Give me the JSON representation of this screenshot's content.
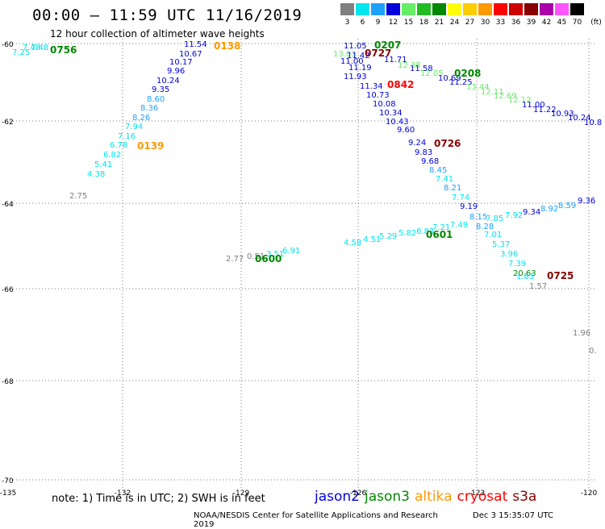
{
  "title": "00:00 – 11:59 UTC 11/16/2019",
  "subtitle": "12 hour collection of altimeter wave heights",
  "legend": {
    "unit": "(ft)",
    "items": [
      {
        "label": "3",
        "color": "#808080"
      },
      {
        "label": "6",
        "color": "#00e5ee"
      },
      {
        "label": "9",
        "color": "#1ea0ff"
      },
      {
        "label": "12",
        "color": "#0000dd"
      },
      {
        "label": "15",
        "color": "#66ee66"
      },
      {
        "label": "18",
        "color": "#22bb22"
      },
      {
        "label": "21",
        "color": "#008800"
      },
      {
        "label": "24",
        "color": "#ffff00"
      },
      {
        "label": "27",
        "color": "#ffcc00"
      },
      {
        "label": "30",
        "color": "#ff9900"
      },
      {
        "label": "33",
        "color": "#ff0000"
      },
      {
        "label": "36",
        "color": "#cc0000"
      },
      {
        "label": "39",
        "color": "#880000"
      },
      {
        "label": "42",
        "color": "#aa00aa"
      },
      {
        "label": "45",
        "color": "#ff55ff"
      },
      {
        "label": "70",
        "color": "#000000"
      }
    ]
  },
  "map": {
    "x_ticks": [
      "-135",
      "-132",
      "-129",
      "-126",
      "-123",
      "-120"
    ],
    "y_ticks": [
      "-60",
      "-62",
      "-64",
      "-66",
      "-68",
      "-70"
    ],
    "track_labels": [
      {
        "text": "0756",
        "color": "#008800"
      },
      {
        "text": "0138",
        "color": "#ff9900"
      },
      {
        "text": "0139",
        "color": "#ff9900"
      },
      {
        "text": "0207",
        "color": "#008800"
      },
      {
        "text": "0727",
        "color": "#880000"
      },
      {
        "text": "0842",
        "color": "#ff0000"
      },
      {
        "text": "0208",
        "color": "#008800"
      },
      {
        "text": "0726",
        "color": "#880000"
      },
      {
        "text": "0601",
        "color": "#008800"
      },
      {
        "text": "0600",
        "color": "#008800"
      },
      {
        "text": "0725",
        "color": "#880000"
      }
    ],
    "wave_labels": [
      {
        "text": "7.25",
        "color": "#00e5ee"
      },
      {
        "text": "7.48",
        "color": "#00e5ee"
      },
      {
        "text": "7.48",
        "color": "#00e5ee"
      },
      {
        "text": "11.54",
        "color": "#0000dd"
      },
      {
        "text": "10.67",
        "color": "#0000dd"
      },
      {
        "text": "10.17",
        "color": "#0000dd"
      },
      {
        "text": "9.96",
        "color": "#0000dd"
      },
      {
        "text": "10.24",
        "color": "#0000dd"
      },
      {
        "text": "9.35",
        "color": "#0000dd"
      },
      {
        "text": "8.60",
        "color": "#1ea0ff"
      },
      {
        "text": "8.36",
        "color": "#1ea0ff"
      },
      {
        "text": "8.26",
        "color": "#1ea0ff"
      },
      {
        "text": "7.94",
        "color": "#00e5ee"
      },
      {
        "text": "7.16",
        "color": "#00e5ee"
      },
      {
        "text": "6.78",
        "color": "#00e5ee"
      },
      {
        "text": "6.82",
        "color": "#00e5ee"
      },
      {
        "text": "5.41",
        "color": "#00e5ee"
      },
      {
        "text": "4.38",
        "color": "#00e5ee"
      },
      {
        "text": "2.75",
        "color": "#808080"
      },
      {
        "text": "11.05",
        "color": "#0000dd"
      },
      {
        "text": "13.03",
        "color": "#66ee66"
      },
      {
        "text": "11.42",
        "color": "#0000dd"
      },
      {
        "text": "11.00",
        "color": "#0000dd"
      },
      {
        "text": "11.19",
        "color": "#0000dd"
      },
      {
        "text": "11.93",
        "color": "#0000dd"
      },
      {
        "text": "11.34",
        "color": "#0000dd"
      },
      {
        "text": "11.71",
        "color": "#0000dd"
      },
      {
        "text": "12.38",
        "color": "#66ee66"
      },
      {
        "text": "11.58",
        "color": "#0000dd"
      },
      {
        "text": "12.05",
        "color": "#66ee66"
      },
      {
        "text": "10.69",
        "color": "#0000dd"
      },
      {
        "text": "11.25",
        "color": "#0000dd"
      },
      {
        "text": "13.44",
        "color": "#66ee66"
      },
      {
        "text": "12.11",
        "color": "#66ee66"
      },
      {
        "text": "12.69",
        "color": "#66ee66"
      },
      {
        "text": "12.12",
        "color": "#66ee66"
      },
      {
        "text": "11.00",
        "color": "#0000dd"
      },
      {
        "text": "11.22",
        "color": "#0000dd"
      },
      {
        "text": "10.93",
        "color": "#0000dd"
      },
      {
        "text": "10.24",
        "color": "#0000dd"
      },
      {
        "text": "10.8",
        "color": "#0000dd"
      },
      {
        "text": "10.73",
        "color": "#0000dd"
      },
      {
        "text": "10.08",
        "color": "#0000dd"
      },
      {
        "text": "10.34",
        "color": "#0000dd"
      },
      {
        "text": "10.43",
        "color": "#0000dd"
      },
      {
        "text": "9.60",
        "color": "#0000dd"
      },
      {
        "text": "9.24",
        "color": "#0000dd"
      },
      {
        "text": "9.83",
        "color": "#0000dd"
      },
      {
        "text": "9.68",
        "color": "#0000dd"
      },
      {
        "text": "8.45",
        "color": "#1ea0ff"
      },
      {
        "text": "7.41",
        "color": "#00e5ee"
      },
      {
        "text": "8.21",
        "color": "#1ea0ff"
      },
      {
        "text": "7.74",
        "color": "#00e5ee"
      },
      {
        "text": "9.19",
        "color": "#0000dd"
      },
      {
        "text": "8.15",
        "color": "#1ea0ff"
      },
      {
        "text": "7.85",
        "color": "#00e5ee"
      },
      {
        "text": "7.92",
        "color": "#00e5ee"
      },
      {
        "text": "9.34",
        "color": "#0000dd"
      },
      {
        "text": "8.92",
        "color": "#1ea0ff"
      },
      {
        "text": "8.59",
        "color": "#1ea0ff"
      },
      {
        "text": "9.36",
        "color": "#0000dd"
      },
      {
        "text": "8.28",
        "color": "#1ea0ff"
      },
      {
        "text": "7.01",
        "color": "#00e5ee"
      },
      {
        "text": "5.37",
        "color": "#00e5ee"
      },
      {
        "text": "3.96",
        "color": "#00e5ee"
      },
      {
        "text": "7.39",
        "color": "#00e5ee"
      },
      {
        "text": "20.63",
        "color": "#008800"
      },
      {
        "text": "1.83",
        "color": "#00e5ee"
      },
      {
        "text": "1.57",
        "color": "#808080"
      },
      {
        "text": "4.58",
        "color": "#00e5ee"
      },
      {
        "text": "4.51",
        "color": "#00e5ee"
      },
      {
        "text": "5.29",
        "color": "#00e5ee"
      },
      {
        "text": "5.82",
        "color": "#00e5ee"
      },
      {
        "text": "6.83",
        "color": "#00e5ee"
      },
      {
        "text": "7.21",
        "color": "#00e5ee"
      },
      {
        "text": "7.49",
        "color": "#00e5ee"
      },
      {
        "text": "2.77",
        "color": "#808080"
      },
      {
        "text": "0.51",
        "color": "#808080"
      },
      {
        "text": "3.51",
        "color": "#00e5ee"
      },
      {
        "text": "6.91",
        "color": "#00e5ee"
      },
      {
        "text": "1.96",
        "color": "#808080"
      },
      {
        "text": "0.",
        "color": "#808080"
      }
    ]
  },
  "note": "note:  1) Time is in UTC;  2) SWH is in feet",
  "missions": [
    {
      "name": "jason2",
      "color": "#0000dd"
    },
    {
      "name": "jason3",
      "color": "#008800"
    },
    {
      "name": "altika",
      "color": "#ff9900"
    },
    {
      "name": "cryosat",
      "color": "#ff0000"
    },
    {
      "name": "s3a",
      "color": "#880000"
    }
  ],
  "footer": {
    "credit": "NOAA/NESDIS Center for Satellite Applications and Research",
    "timestamp": "Dec  3 15:35:07 UTC 2019"
  }
}
